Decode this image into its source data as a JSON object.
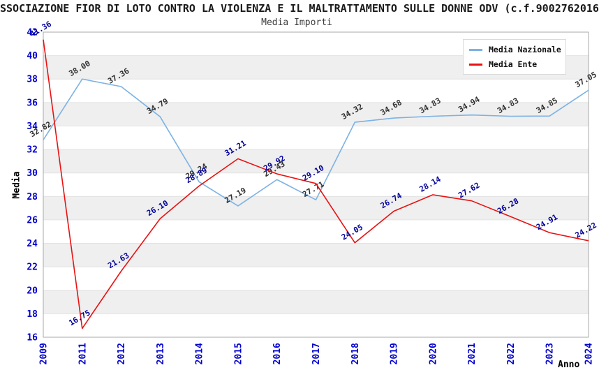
{
  "figure": {
    "title": "SSOCIAZIONE FIOR DI LOTO CONTRO LA VIOLENZA E IL MALTRATTAMENTO SULLE DONNE ODV (c.f.9002762016",
    "subtitle": "Media Importi"
  },
  "axes": {
    "y_title": "Media",
    "x_title": "Anno"
  },
  "chart_data": {
    "type": "line",
    "title": "Media Importi",
    "xlabel": "Anno",
    "ylabel": "Media",
    "ylim": [
      16,
      42
    ],
    "y_ticks": [
      16,
      18,
      20,
      22,
      24,
      26,
      28,
      30,
      32,
      34,
      36,
      38,
      40,
      42
    ],
    "grid": "alternating-horizontal-bands",
    "band_intervals": [
      [
        18,
        20
      ],
      [
        22,
        24
      ],
      [
        26,
        28
      ],
      [
        30,
        32
      ],
      [
        34,
        36
      ],
      [
        38,
        40
      ]
    ],
    "band_color": "#efefef",
    "gridline_color": "#e2e2e2",
    "plot_border_color": "#aaaaaa",
    "tick_label_color": "#0000cc",
    "legend_position": "top-right",
    "categories": [
      "2009",
      "2011",
      "2012",
      "2013",
      "2014",
      "2015",
      "2016",
      "2017",
      "2018",
      "2019",
      "2020",
      "2021",
      "2022",
      "2023",
      "2024"
    ],
    "series": [
      {
        "name": "Media Nazionale",
        "color": "#7cb2e4",
        "label_color": "#2e2e2e",
        "values": [
          32.82,
          38.0,
          37.36,
          34.79,
          29.24,
          27.19,
          29.43,
          27.71,
          34.32,
          34.68,
          34.83,
          34.94,
          34.83,
          34.85,
          37.05
        ]
      },
      {
        "name": "Media Ente",
        "color": "#e81212",
        "label_color": "#000099",
        "values": [
          41.36,
          16.75,
          21.63,
          26.1,
          28.89,
          31.21,
          29.92,
          29.1,
          24.05,
          26.74,
          28.14,
          27.62,
          26.28,
          24.91,
          24.22
        ]
      }
    ]
  }
}
